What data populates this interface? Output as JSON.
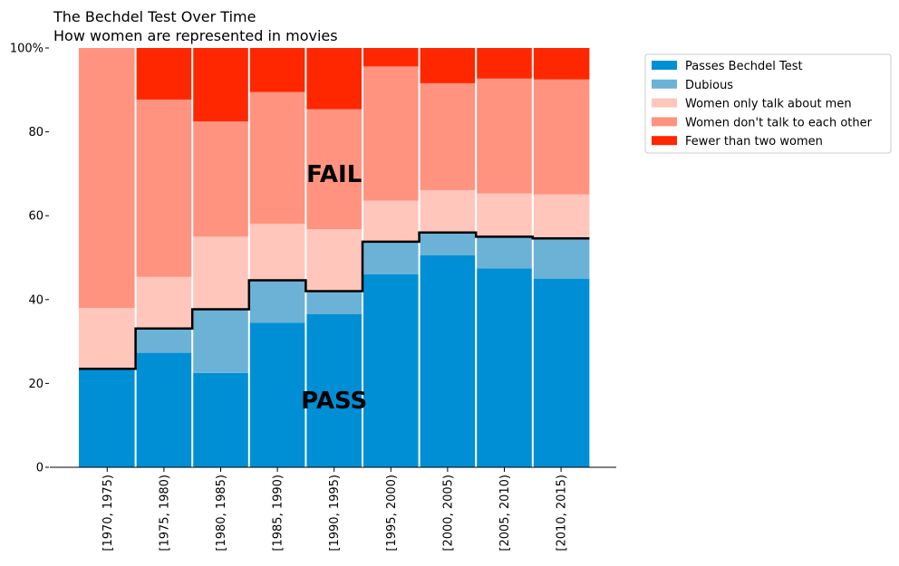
{
  "chart_data": {
    "type": "bar",
    "stacked": true,
    "title": "The Bechdel Test Over Time",
    "subtitle": "How women are represented in movies",
    "categories": [
      "[1970, 1975)",
      "[1975, 1980)",
      "[1980, 1985)",
      "[1985, 1990)",
      "[1990, 1995)",
      "[1995, 2000)",
      "[2000, 2005)",
      "[2005, 2010)",
      "[2010, 2015)"
    ],
    "series": [
      {
        "name": "Passes Bechdel Test",
        "color": "#008fd5",
        "values": [
          23.5,
          27.3,
          22.5,
          34.5,
          36.5,
          46.0,
          50.6,
          47.4,
          45.0
        ]
      },
      {
        "name": "Dubious",
        "color": "#6bb2d6",
        "values": [
          0.0,
          5.8,
          15.2,
          10.1,
          5.5,
          7.8,
          5.4,
          7.6,
          9.6
        ]
      },
      {
        "name": "Women only talk about men",
        "color": "#ffc6bc",
        "values": [
          14.5,
          12.3,
          17.3,
          13.5,
          14.8,
          9.8,
          10.1,
          10.3,
          10.5
        ]
      },
      {
        "name": "Women don't talk to each other",
        "color": "#ff9380",
        "values": [
          62.0,
          42.3,
          27.5,
          31.4,
          28.6,
          32.0,
          25.5,
          27.4,
          27.4
        ]
      },
      {
        "name": "Fewer than two women",
        "color": "#ff2700",
        "values": [
          0.0,
          12.3,
          17.5,
          10.5,
          14.6,
          4.4,
          8.4,
          7.3,
          7.5
        ]
      }
    ],
    "pass_line_values": [
      23.5,
      33.1,
      37.7,
      44.6,
      42.0,
      53.8,
      56.0,
      55.0,
      54.6
    ],
    "annotations": [
      {
        "text": "FAIL",
        "x_category": "[1990, 1995)",
        "y": 70
      },
      {
        "text": "PASS",
        "x_category": "[1990, 1995)",
        "y": 16
      }
    ],
    "yticks": [
      0,
      20,
      40,
      60,
      80,
      100
    ],
    "ytick_labels": [
      "0",
      "20",
      "40",
      "60",
      "80",
      "100%"
    ],
    "ylim": [
      0,
      100
    ],
    "legend_position": "upper right, outside plot",
    "grid": false
  }
}
